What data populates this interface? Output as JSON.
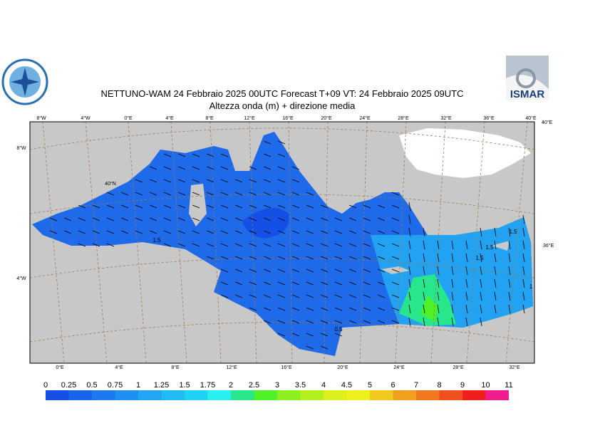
{
  "header": {
    "title": "NETTUNO-WAM  24  Febbraio 2025 00UTC Forecast T+09 VT: 24  Febbraio 2025 09UTC",
    "subtitle": "Altezza onda (m) + direzione media",
    "logo_right": "ISMAR"
  },
  "map": {
    "top_labels": [
      "8°W",
      "4°W",
      "0°E",
      "4°E",
      "8°E",
      "12°E",
      "16°E",
      "20°E",
      "24°E",
      "28°E",
      "32°E",
      "36°E",
      "40°E"
    ],
    "bottom_labels": [
      "0°E",
      "4°E",
      "8°E",
      "12°E",
      "16°E",
      "20°E",
      "24°E",
      "28°E",
      "32°E"
    ],
    "left_labels": [
      "8°W",
      "40°N",
      "4°W"
    ],
    "right_labels": [
      "40°E",
      "36°E"
    ],
    "contour_labels": [
      "1.5",
      "0.5",
      "1.5",
      "1.5",
      "1.5",
      "1"
    ]
  },
  "colorbar": {
    "labels": [
      0,
      0.25,
      0.5,
      0.75,
      1,
      1.25,
      1.5,
      1.75,
      2,
      2.5,
      3,
      3.5,
      4,
      4.5,
      5,
      6,
      7,
      8,
      9,
      10,
      11
    ],
    "colors": [
      "#1450e6",
      "#1a64ec",
      "#1e78f0",
      "#2090f0",
      "#22a6f2",
      "#1ebcf2",
      "#1ed2f5",
      "#28f0f0",
      "#28e68c",
      "#50f028",
      "#8cf01e",
      "#b4f01e",
      "#dcf01e",
      "#f0f01e",
      "#f0c81e",
      "#f0a01e",
      "#f0781e",
      "#f0501e",
      "#f01e1e",
      "#f01e8c"
    ]
  }
}
